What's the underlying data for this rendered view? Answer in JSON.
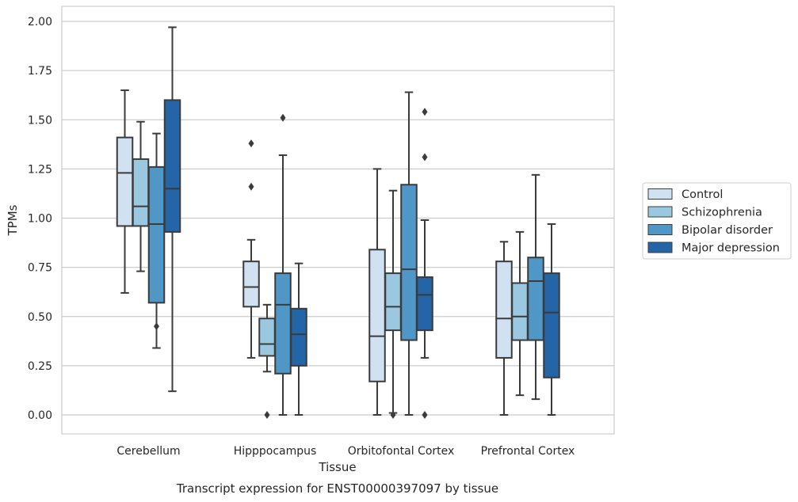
{
  "chart_data": {
    "type": "box",
    "title": "",
    "caption": "Transcript expression for ENST00000397097 by tissue",
    "xlabel": "Tissue",
    "ylabel": "TPMs",
    "ylim": [
      -0.1,
      2.07
    ],
    "yticks": [
      "0.00",
      "0.25",
      "0.50",
      "0.75",
      "1.00",
      "1.25",
      "1.50",
      "1.75",
      "2.00"
    ],
    "categories": [
      "Cerebellum",
      "Hipppocampus",
      "Orbitofontal Cortex",
      "Prefrontal Cortex"
    ],
    "grid": true,
    "legend_position": "right",
    "series": [
      {
        "name": "Control",
        "color": "#d0e1f2",
        "boxes": [
          {
            "whislo": 0.62,
            "q1": 0.96,
            "med": 1.23,
            "q3": 1.41,
            "whishi": 1.65,
            "fliers": []
          },
          {
            "whislo": 0.29,
            "q1": 0.55,
            "med": 0.65,
            "q3": 0.78,
            "whishi": 0.89,
            "fliers": [
              1.16,
              1.38
            ]
          },
          {
            "whislo": 0.0,
            "q1": 0.17,
            "med": 0.4,
            "q3": 0.84,
            "whishi": 1.25,
            "fliers": []
          },
          {
            "whislo": 0.0,
            "q1": 0.29,
            "med": 0.49,
            "q3": 0.78,
            "whishi": 0.88,
            "fliers": []
          }
        ]
      },
      {
        "name": "Schizophrenia",
        "color": "#9ac8e0",
        "boxes": [
          {
            "whislo": 0.73,
            "q1": 0.96,
            "med": 1.06,
            "q3": 1.3,
            "whishi": 1.49,
            "fliers": []
          },
          {
            "whislo": 0.22,
            "q1": 0.3,
            "med": 0.36,
            "q3": 0.49,
            "whishi": 0.56,
            "fliers": [
              0.0
            ]
          },
          {
            "whislo": 0.01,
            "q1": 0.43,
            "med": 0.55,
            "q3": 0.72,
            "whishi": 1.14,
            "fliers": [
              0.0
            ]
          },
          {
            "whislo": 0.1,
            "q1": 0.38,
            "med": 0.5,
            "q3": 0.67,
            "whishi": 0.93,
            "fliers": []
          }
        ]
      },
      {
        "name": "Bipolar disorder",
        "color": "#5097c8",
        "boxes": [
          {
            "whislo": 0.34,
            "q1": 0.57,
            "med": 0.97,
            "q3": 1.26,
            "whishi": 1.43,
            "fliers": [
              0.45
            ]
          },
          {
            "whislo": 0.0,
            "q1": 0.21,
            "med": 0.56,
            "q3": 0.72,
            "whishi": 1.32,
            "fliers": [
              1.51
            ]
          },
          {
            "whislo": 0.0,
            "q1": 0.38,
            "med": 0.74,
            "q3": 1.17,
            "whishi": 1.64,
            "fliers": []
          },
          {
            "whislo": 0.08,
            "q1": 0.38,
            "med": 0.68,
            "q3": 0.8,
            "whishi": 1.22,
            "fliers": []
          }
        ]
      },
      {
        "name": "Major depression",
        "color": "#2365a6",
        "boxes": [
          {
            "whislo": 0.12,
            "q1": 0.93,
            "med": 1.15,
            "q3": 1.6,
            "whishi": 1.97,
            "fliers": []
          },
          {
            "whislo": 0.0,
            "q1": 0.25,
            "med": 0.41,
            "q3": 0.54,
            "whishi": 0.77,
            "fliers": []
          },
          {
            "whislo": 0.29,
            "q1": 0.43,
            "med": 0.61,
            "q3": 0.7,
            "whishi": 0.99,
            "fliers": [
              0.0,
              1.31,
              1.54
            ]
          },
          {
            "whislo": 0.0,
            "q1": 0.19,
            "med": 0.52,
            "q3": 0.72,
            "whishi": 0.97,
            "fliers": []
          }
        ]
      }
    ]
  }
}
